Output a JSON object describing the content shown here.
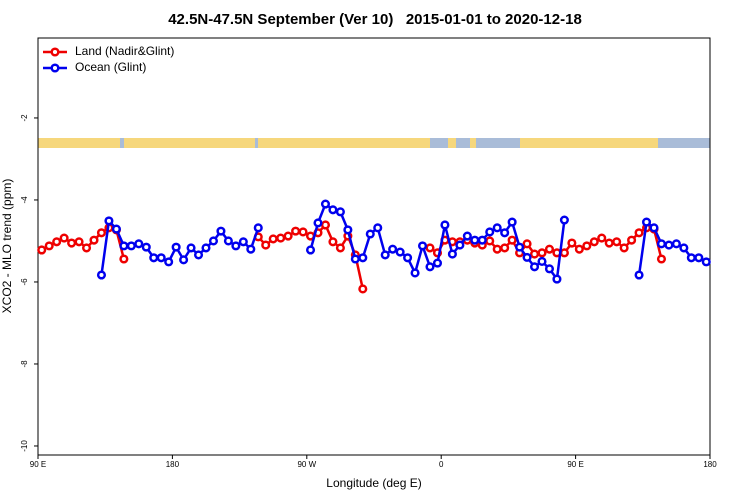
{
  "chart_data": {
    "type": "line",
    "title": "42.5N-47.5N September (Ver 10)   2015-01-01 to 2020-12-18",
    "xlabel": "Longitude (deg E)",
    "ylabel": "XCO2 - MLO trend (ppm)",
    "xlim": [
      90,
      540
    ],
    "xticks": [
      {
        "value": 90,
        "label": "90 E"
      },
      180,
      {
        "value": 270,
        "label": "90 W"
      },
      {
        "value": 360,
        "label": "0"
      },
      {
        "value": 450,
        "label": "90 E"
      },
      {
        "value": 540,
        "label": "180"
      }
    ],
    "ylim": [
      -10.22,
      -0.05
    ],
    "yticks": [
      -10,
      -8,
      -6,
      -4,
      -2
    ],
    "legend": "top-left",
    "x": [
      92.5,
      97.5,
      102.5,
      107.5,
      112.5,
      117.5,
      122.5,
      127.5,
      132.5,
      137.5,
      142.5,
      147.5,
      152.5,
      157.5,
      162.5,
      167.5,
      172.5,
      177.5,
      182.5,
      187.5,
      192.5,
      197.5,
      202.5,
      207.5,
      212.5,
      217.5,
      222.5,
      227.5,
      232.5,
      237.5,
      242.5,
      247.5,
      252.5,
      257.5,
      262.5,
      267.5,
      272.5,
      277.5,
      282.5,
      287.5,
      292.5,
      297.5,
      302.5,
      307.5,
      312.5,
      317.5,
      322.5,
      327.5,
      332.5,
      337.5,
      342.5,
      347.5,
      352.5,
      357.5,
      362.5,
      367.5,
      372.5,
      377.5,
      382.5,
      387.5,
      392.5,
      397.5,
      402.5,
      407.5,
      412.5,
      417.5,
      422.5,
      427.5,
      432.5,
      437.5,
      442.5,
      447.5,
      452.5,
      457.5,
      462.5,
      467.5,
      472.5,
      477.5,
      482.5,
      487.5,
      492.5,
      497.5,
      502.5,
      507.5,
      512.5,
      517.5,
      522.5,
      527.5,
      532.5,
      537.5
    ],
    "series": [
      {
        "name": "Land (Nadir&Glint)",
        "color": "#ee0000",
        "values": [
          -5.22,
          -5.12,
          -5.02,
          -4.93,
          -5.05,
          -5.02,
          -5.17,
          -4.98,
          -4.8,
          -4.68,
          -4.73,
          -5.44,
          null,
          null,
          null,
          null,
          null,
          null,
          null,
          null,
          null,
          null,
          null,
          null,
          null,
          null,
          null,
          null,
          null,
          -4.9,
          -5.1,
          -4.95,
          -4.93,
          -4.88,
          -4.76,
          -4.78,
          -4.88,
          -4.8,
          -4.61,
          -5.02,
          -5.17,
          -4.88,
          -5.34,
          -6.17,
          null,
          null,
          null,
          null,
          null,
          null,
          null,
          null,
          -5.17,
          -5.29,
          -4.98,
          -5.02,
          -5.02,
          -4.98,
          -5.05,
          -5.1,
          -5.0,
          -5.2,
          -5.17,
          -4.98,
          -5.29,
          -5.07,
          -5.32,
          -5.29,
          -5.2,
          -5.29,
          -5.29,
          -5.05,
          -5.2,
          -5.12,
          -5.02,
          -4.93,
          -5.05,
          -5.02,
          -5.17,
          -4.98,
          -4.8,
          -4.68,
          -4.71,
          -5.44,
          null,
          null,
          null,
          null,
          null,
          null
        ]
      },
      {
        "name": "Ocean (Glint)",
        "color": "#0000ee",
        "values": [
          null,
          null,
          null,
          null,
          null,
          null,
          null,
          null,
          -5.83,
          -4.51,
          -4.71,
          -5.12,
          -5.12,
          -5.07,
          -5.15,
          -5.41,
          -5.41,
          -5.51,
          -5.15,
          -5.46,
          -5.17,
          -5.34,
          -5.17,
          -5.0,
          -4.76,
          -5.0,
          -5.12,
          -5.02,
          -5.2,
          -4.68,
          null,
          null,
          null,
          null,
          null,
          null,
          -5.22,
          -4.56,
          -4.1,
          -4.24,
          -4.29,
          -4.73,
          -5.44,
          -5.41,
          -4.83,
          -4.68,
          -5.34,
          -5.2,
          -5.27,
          -5.41,
          -5.78,
          -5.12,
          -5.63,
          -5.54,
          -4.61,
          -5.32,
          -5.1,
          -4.88,
          -4.98,
          -4.98,
          -4.78,
          -4.68,
          -4.8,
          -4.54,
          -5.15,
          -5.4,
          -5.63,
          -5.5,
          -5.68,
          -5.93,
          -4.49,
          null,
          null,
          null,
          null,
          null,
          null,
          null,
          null,
          null,
          -5.83,
          -4.54,
          -4.68,
          -5.07,
          -5.1,
          -5.07,
          -5.17,
          -5.41,
          -5.41,
          -5.51
        ]
      }
    ]
  }
}
